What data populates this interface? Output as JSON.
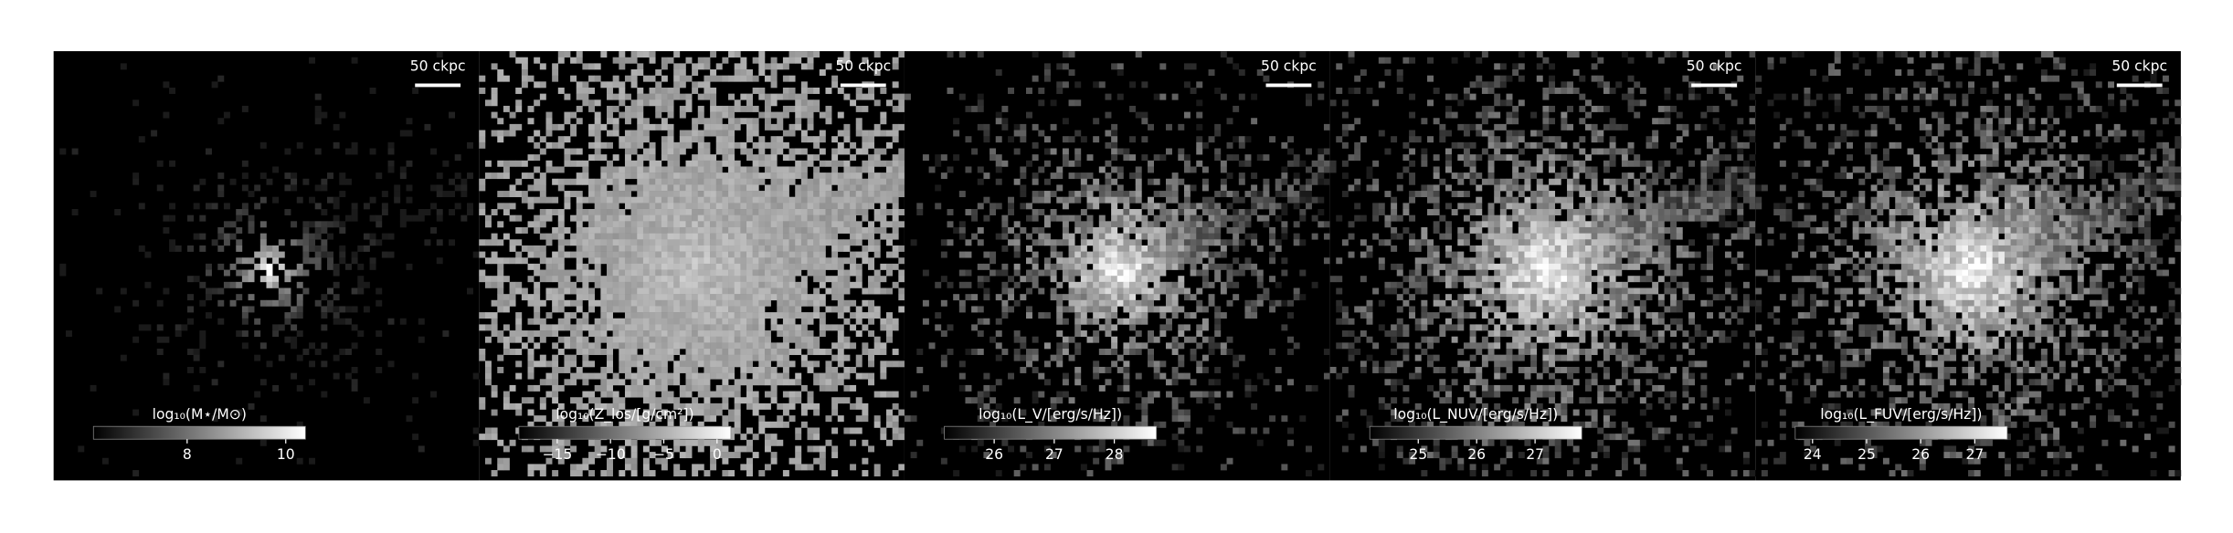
{
  "chart_data": [
    {
      "type": "image",
      "scale_label": "50 ckpc",
      "colorbar_label": "log₁₀(M⋆/M⊙)",
      "clim": [
        6.1,
        10.4
      ],
      "colorbar_ticks": [
        8,
        10
      ]
    },
    {
      "type": "image",
      "scale_label": "50 ckpc",
      "colorbar_label": "log₁₀(Z_los/[g/cm²])",
      "clim": [
        -18.6,
        1.3
      ],
      "colorbar_ticks": [
        {
          "value": -15,
          "label": "−15"
        },
        {
          "value": -10,
          "label": "−10"
        },
        {
          "value": -5,
          "label": "−5"
        },
        0
      ]
    },
    {
      "type": "image",
      "scale_label": "50 ckpc",
      "colorbar_label": "log₁₀(L_V/[erg/s/Hz])",
      "clim": [
        25.17,
        28.7
      ],
      "colorbar_ticks": [
        26,
        27,
        28
      ]
    },
    {
      "type": "image",
      "scale_label": "50 ckpc",
      "colorbar_label": "log₁₀(L_NUV/[erg/s/Hz])",
      "clim": [
        24.17,
        27.8
      ],
      "colorbar_ticks": [
        25,
        26,
        27
      ]
    },
    {
      "type": "image",
      "scale_label": "50 ckpc",
      "colorbar_label": "log₁₀(L_FUV/[erg/s/Hz])",
      "clim": [
        23.68,
        27.6
      ],
      "colorbar_ticks": [
        24,
        25,
        26,
        27
      ]
    }
  ]
}
